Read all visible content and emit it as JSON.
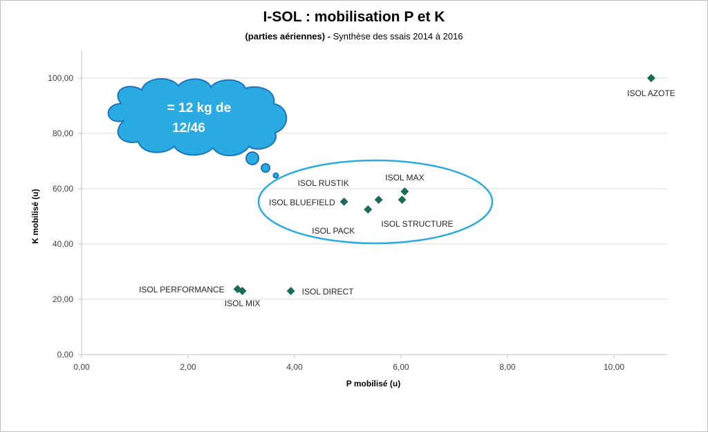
{
  "chart_data": {
    "type": "scatter",
    "title": "I-SOL : mobilisation P et K",
    "subtitle_bold": "(parties aériennes) -",
    "subtitle_rest": " Synthèse des ssais 2014 à 2016",
    "xlabel": "P mobilisé (u)",
    "ylabel": "K mobilisé (u)",
    "xlim": [
      0,
      11
    ],
    "ylim": [
      0,
      110
    ],
    "xticks": [
      0,
      2,
      4,
      6,
      8,
      10
    ],
    "yticks": [
      0,
      20,
      40,
      60,
      80,
      100
    ],
    "xtick_labels": [
      "0,00",
      "2,00",
      "4,00",
      "6,00",
      "8,00",
      "10,00"
    ],
    "ytick_labels": [
      "0,00",
      "20,00",
      "40,00",
      "60,00",
      "80,00",
      "100,00"
    ],
    "grid": "horizontal",
    "marker": "diamond",
    "marker_color": "#1a6b5a",
    "points": [
      {
        "x": 10.7,
        "y": 100.0
      },
      {
        "x": 6.07,
        "y": 59.0
      },
      {
        "x": 5.58,
        "y": 56.0
      },
      {
        "x": 4.93,
        "y": 55.3
      },
      {
        "x": 6.02,
        "y": 56.0
      },
      {
        "x": 5.38,
        "y": 52.5
      },
      {
        "x": 2.93,
        "y": 23.7
      },
      {
        "x": 3.02,
        "y": 23.0
      },
      {
        "x": 3.93,
        "y": 23.0
      }
    ],
    "labels": [
      {
        "text": "ISOL AZOTE",
        "x": 10.7,
        "y": 100.0,
        "pos": "below"
      },
      {
        "text": "ISOL MAX",
        "x": 6.07,
        "y": 59.0,
        "pos": "above"
      },
      {
        "text": "ISOL RUSTIK",
        "x": 5.58,
        "y": 56.0,
        "pos": "above-left"
      },
      {
        "text": "ISOL BLUEFIELD",
        "x": 4.93,
        "y": 55.3,
        "pos": "left"
      },
      {
        "text": "ISOL STRUCTURE",
        "x": 6.02,
        "y": 56.0,
        "pos": "below"
      },
      {
        "text": "ISOL PACK",
        "x": 5.38,
        "y": 52.5,
        "pos": "below-left"
      },
      {
        "text": "ISOL PERFORMANCE",
        "x": 2.93,
        "y": 23.7,
        "pos": "left"
      },
      {
        "text": "ISOL MIX",
        "x": 3.02,
        "y": 23.0,
        "pos": "below"
      },
      {
        "text": "ISOL DIRECT",
        "x": 3.93,
        "y": 23.0,
        "pos": "right"
      }
    ],
    "annotations": [
      {
        "type": "cloud-callout",
        "lines": [
          "= 12 kg de",
          "12/46"
        ],
        "fill": "#29aae1",
        "stroke": "#1b75bc"
      },
      {
        "type": "ellipse-highlight",
        "stroke": "#29aae1"
      }
    ]
  },
  "colors": {
    "axis": "#bfbfbf",
    "grid": "#d9d9d9",
    "cloud_fill": "#29aae1",
    "cloud_stroke": "#1b75bc",
    "ellipse_stroke": "#29aae1",
    "marker": "#1a6b5a"
  }
}
